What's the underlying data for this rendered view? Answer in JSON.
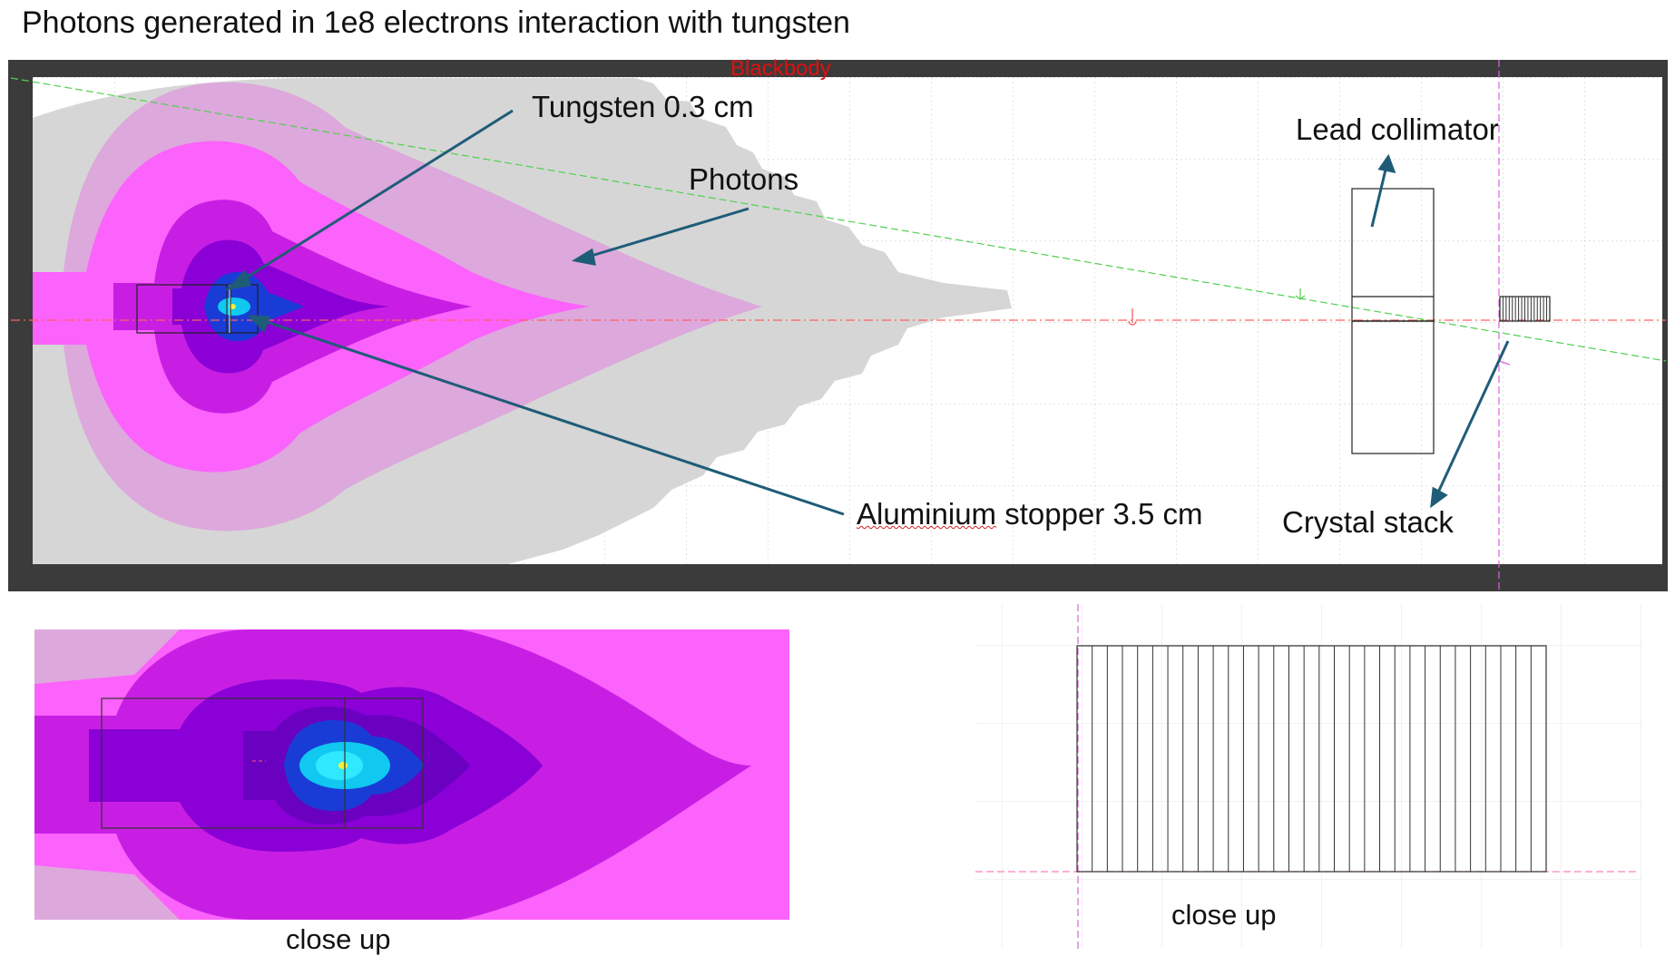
{
  "title": "Photons generated in 1e8 electrons interaction with tungsten",
  "main_view": {
    "blackbody_label": "Blackbody",
    "labels": {
      "tungsten": "Tungsten 0.3 cm",
      "photons": "Photons",
      "aluminium_word": "Aluminium",
      "aluminium_rest": " stopper 3.5 cm",
      "lead_collimator": "Lead collimator",
      "crystal_stack": "Crystal stack"
    }
  },
  "closeup_left": {
    "caption": "close up"
  },
  "closeup_right": {
    "caption": "close up"
  },
  "colors": {
    "frame": "#3b3b3b",
    "annotation_arrow": "#1f5c78",
    "grey_region": "#d6d6d6",
    "light_magenta": "#dda8dc",
    "magenta": "#fc62fc",
    "deep_magenta": "#c81ee4",
    "purple": "#8a00d6",
    "blue": "#1a3cd6",
    "cyan": "#10c8f0",
    "beam_axis": "#ff6060",
    "guide_line": "#50d050"
  }
}
